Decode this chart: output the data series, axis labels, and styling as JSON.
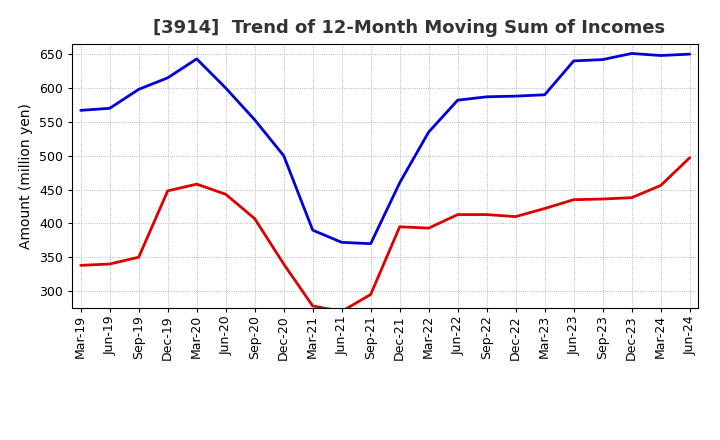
{
  "title": "[3914]  Trend of 12-Month Moving Sum of Incomes",
  "ylabel": "Amount (million yen)",
  "ylim": [
    275,
    665
  ],
  "yticks": [
    300,
    350,
    400,
    450,
    500,
    550,
    600,
    650
  ],
  "x_labels": [
    "Mar-19",
    "Jun-19",
    "Sep-19",
    "Dec-19",
    "Mar-20",
    "Jun-20",
    "Sep-20",
    "Dec-20",
    "Mar-21",
    "Jun-21",
    "Sep-21",
    "Dec-21",
    "Mar-22",
    "Jun-22",
    "Sep-22",
    "Dec-22",
    "Mar-23",
    "Jun-23",
    "Sep-23",
    "Dec-23",
    "Mar-24",
    "Jun-24"
  ],
  "ordinary_income": [
    567,
    570,
    598,
    615,
    643,
    600,
    553,
    500,
    390,
    372,
    370,
    460,
    535,
    582,
    587,
    588,
    590,
    640,
    642,
    651,
    648,
    650
  ],
  "net_income": [
    338,
    340,
    350,
    448,
    458,
    443,
    407,
    340,
    278,
    270,
    295,
    395,
    393,
    413,
    413,
    410,
    422,
    435,
    436,
    438,
    456,
    497
  ],
  "ordinary_color": "#0000dd",
  "net_color": "#dd0000",
  "line_width": 2.0,
  "background_color": "#ffffff",
  "grid_color": "#999999",
  "title_fontsize": 13,
  "ylabel_fontsize": 10,
  "tick_fontsize": 9,
  "legend_fontsize": 10
}
